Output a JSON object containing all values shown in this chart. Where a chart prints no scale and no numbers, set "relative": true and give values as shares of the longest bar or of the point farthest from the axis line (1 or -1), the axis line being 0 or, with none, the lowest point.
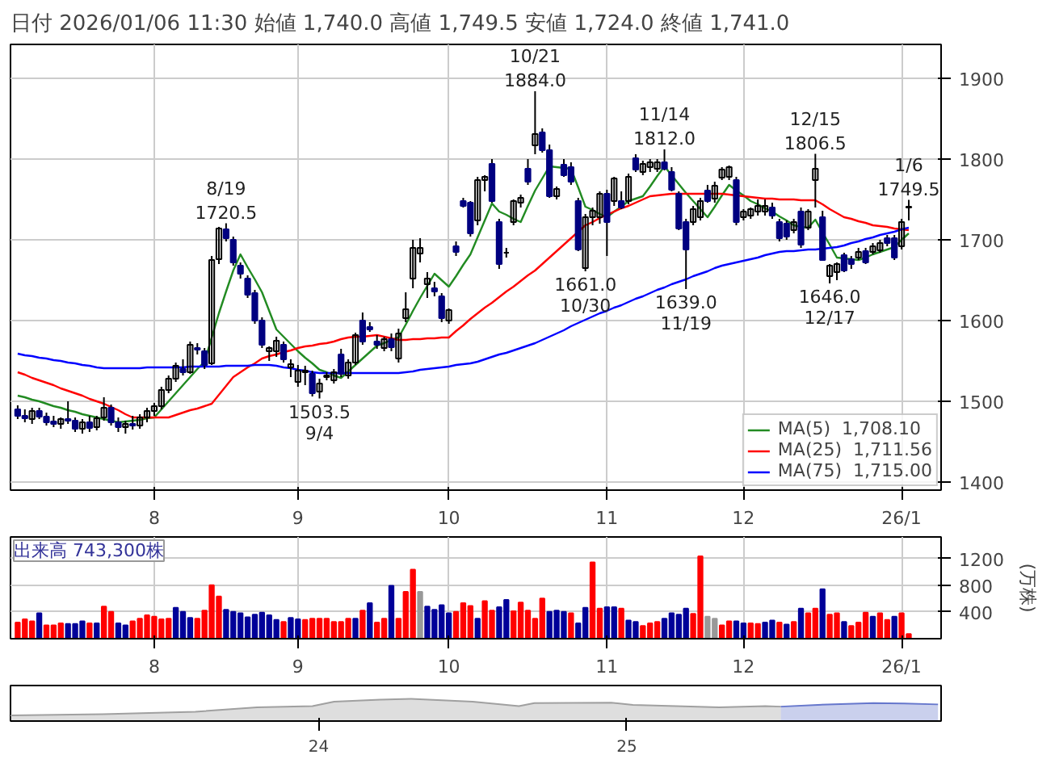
{
  "chart_data": [
    {
      "type": "candlestick",
      "title": "日付 2026/01/06 11:30 始値 1,740.0 高値 1,749.5 安値 1,724.0 終値 1,741.0",
      "categories": [
        null,
        null,
        null,
        null,
        null,
        null,
        null,
        null,
        null,
        null,
        null,
        null,
        null,
        null,
        null,
        null,
        null,
        null,
        null,
        "8",
        null,
        null,
        null,
        null,
        null,
        null,
        null,
        null,
        null,
        null,
        null,
        null,
        null,
        null,
        null,
        null,
        null,
        null,
        null,
        "9",
        null,
        null,
        null,
        null,
        null,
        null,
        null,
        null,
        null,
        null,
        null,
        null,
        null,
        null,
        null,
        null,
        null,
        null,
        null,
        null,
        "10",
        null,
        null,
        null,
        null,
        null,
        null,
        null,
        null,
        null,
        null,
        null,
        null,
        null,
        null,
        null,
        null,
        null,
        null,
        null,
        null,
        null,
        "11",
        null,
        null,
        null,
        null,
        null,
        null,
        null,
        null,
        null,
        null,
        null,
        null,
        null,
        null,
        null,
        null,
        null,
        null,
        "12",
        null,
        null,
        null,
        null,
        null,
        null,
        null,
        null,
        null,
        null,
        null,
        null,
        null,
        null,
        null,
        null,
        null,
        null,
        null,
        null,
        null,
        "26/1",
        null
      ],
      "ohlc": [
        [
          1490,
          1495,
          1478,
          1482
        ],
        [
          1482,
          1490,
          1474,
          1479
        ],
        [
          1478,
          1492,
          1472,
          1488
        ],
        [
          1488,
          1492,
          1478,
          1481
        ],
        [
          1481,
          1486,
          1470,
          1474
        ],
        [
          1475,
          1482,
          1468,
          1472
        ],
        [
          1472,
          1480,
          1466,
          1478
        ],
        [
          1478,
          1500,
          1472,
          1476
        ],
        [
          1476,
          1480,
          1462,
          1466
        ],
        [
          1466,
          1478,
          1460,
          1474
        ],
        [
          1474,
          1482,
          1462,
          1467
        ],
        [
          1468,
          1482,
          1464,
          1479
        ],
        [
          1480,
          1505,
          1476,
          1492
        ],
        [
          1492,
          1496,
          1470,
          1474
        ],
        [
          1474,
          1480,
          1462,
          1468
        ],
        [
          1468,
          1476,
          1460,
          1472
        ],
        [
          1472,
          1482,
          1465,
          1470
        ],
        [
          1470,
          1484,
          1466,
          1480
        ],
        [
          1480,
          1492,
          1474,
          1488
        ],
        [
          1488,
          1498,
          1482,
          1494
        ],
        [
          1494,
          1518,
          1490,
          1514
        ],
        [
          1514,
          1532,
          1510,
          1528
        ],
        [
          1528,
          1548,
          1524,
          1544
        ],
        [
          1540,
          1552,
          1532,
          1536
        ],
        [
          1536,
          1574,
          1534,
          1570
        ],
        [
          1566,
          1572,
          1558,
          1564
        ],
        [
          1562,
          1566,
          1540,
          1545
        ],
        [
          1547,
          1680,
          1545,
          1675
        ],
        [
          1676,
          1716,
          1670,
          1714
        ],
        [
          1713,
          1720.5,
          1698,
          1702
        ],
        [
          1700,
          1704,
          1668,
          1672
        ],
        [
          1668,
          1672,
          1652,
          1658
        ],
        [
          1652,
          1656,
          1628,
          1632
        ],
        [
          1634,
          1638,
          1596,
          1600
        ],
        [
          1600,
          1604,
          1566,
          1570
        ],
        [
          1562,
          1568,
          1550,
          1566
        ],
        [
          1562,
          1580,
          1555,
          1575
        ],
        [
          1570,
          1574,
          1548,
          1552
        ],
        [
          1542,
          1552,
          1530,
          1546
        ],
        [
          1524,
          1545,
          1518,
          1538
        ],
        [
          1536,
          1544,
          1520,
          1538
        ],
        [
          1534,
          1538,
          1506,
          1510
        ],
        [
          1512,
          1528,
          1503.5,
          1522
        ],
        [
          1530,
          1536,
          1526,
          1532
        ],
        [
          1526,
          1540,
          1522,
          1536
        ],
        [
          1558,
          1565,
          1530,
          1534
        ],
        [
          1532,
          1552,
          1528,
          1548
        ],
        [
          1548,
          1585,
          1545,
          1582
        ],
        [
          1600,
          1610,
          1570,
          1574
        ],
        [
          1592,
          1598,
          1586,
          1589
        ],
        [
          1574,
          1582,
          1565,
          1570
        ],
        [
          1566,
          1580,
          1562,
          1577
        ],
        [
          1577,
          1584,
          1562,
          1567
        ],
        [
          1553,
          1590,
          1548,
          1584
        ],
        [
          1603,
          1635,
          1598,
          1614
        ],
        [
          1652,
          1700,
          1640,
          1690
        ],
        [
          1683,
          1702,
          1672,
          1690
        ],
        [
          1645,
          1660,
          1628,
          1652
        ],
        [
          1640,
          1648,
          1630,
          1636
        ],
        [
          1630,
          1634,
          1598,
          1603
        ],
        [
          1600,
          1615,
          1596,
          1613
        ],
        [
          1692,
          1698,
          1680,
          1685
        ],
        [
          1748,
          1752,
          1740,
          1742
        ],
        [
          1746,
          1748,
          1704,
          1708
        ],
        [
          1724,
          1778,
          1718,
          1774
        ],
        [
          1774,
          1780,
          1760,
          1778
        ],
        [
          1794,
          1800,
          1746,
          1748
        ],
        [
          1722,
          1726,
          1664,
          1670
        ],
        [
          1684,
          1690,
          1678,
          1684
        ],
        [
          1722,
          1750,
          1718,
          1748
        ],
        [
          1746,
          1756,
          1740,
          1752
        ],
        [
          1788,
          1800,
          1768,
          1772
        ],
        [
          1817,
          1884.0,
          1806,
          1831
        ],
        [
          1833,
          1838,
          1808,
          1811
        ],
        [
          1811,
          1818,
          1752,
          1754
        ],
        [
          1754,
          1766,
          1750,
          1763
        ],
        [
          1793,
          1800,
          1778,
          1780
        ],
        [
          1790,
          1796,
          1768,
          1772
        ],
        [
          1748,
          1752,
          1686,
          1688
        ],
        [
          1665,
          1732,
          1661.0,
          1728
        ],
        [
          1728,
          1740,
          1718,
          1736
        ],
        [
          1728,
          1760,
          1720,
          1757
        ],
        [
          1757,
          1762,
          1680,
          1722
        ],
        [
          1748,
          1778,
          1742,
          1776
        ],
        [
          1748,
          1760,
          1738,
          1740
        ],
        [
          1748,
          1782,
          1744,
          1778
        ],
        [
          1801,
          1806,
          1784,
          1787
        ],
        [
          1784,
          1798,
          1780,
          1794
        ],
        [
          1790,
          1800,
          1784,
          1796
        ],
        [
          1788,
          1800,
          1784,
          1796
        ],
        [
          1796,
          1812.0,
          1786,
          1788
        ],
        [
          1784,
          1790,
          1760,
          1762
        ],
        [
          1757,
          1760,
          1712,
          1714
        ],
        [
          1722,
          1726,
          1639.0,
          1688
        ],
        [
          1722,
          1742,
          1718,
          1738
        ],
        [
          1728,
          1752,
          1724,
          1748
        ],
        [
          1761,
          1768,
          1746,
          1748
        ],
        [
          1751,
          1772,
          1746,
          1767
        ],
        [
          1777,
          1790,
          1774,
          1787
        ],
        [
          1778,
          1792,
          1774,
          1790
        ],
        [
          1774,
          1778,
          1718,
          1722
        ],
        [
          1728,
          1738,
          1724,
          1735
        ],
        [
          1730,
          1740,
          1726,
          1738
        ],
        [
          1735,
          1750,
          1730,
          1742
        ],
        [
          1735,
          1750,
          1730,
          1742
        ],
        [
          1740,
          1746,
          1726,
          1730
        ],
        [
          1722,
          1726,
          1698,
          1702
        ],
        [
          1720,
          1724,
          1700,
          1704
        ],
        [
          1712,
          1726,
          1708,
          1722
        ],
        [
          1735,
          1740,
          1690,
          1694
        ],
        [
          1715,
          1738,
          1712,
          1735
        ],
        [
          1774,
          1806.5,
          1740,
          1788
        ],
        [
          1728,
          1736,
          1674,
          1675
        ],
        [
          1655,
          1670,
          1646.0,
          1668
        ],
        [
          1660,
          1672,
          1650,
          1670
        ],
        [
          1681,
          1684,
          1660,
          1662
        ],
        [
          1676,
          1680,
          1664,
          1670
        ],
        [
          1678,
          1690,
          1675,
          1685
        ],
        [
          1686,
          1690,
          1670,
          1672
        ],
        [
          1685,
          1696,
          1682,
          1692
        ],
        [
          1687,
          1700,
          1684,
          1696
        ],
        [
          1702,
          1706,
          1692,
          1696
        ],
        [
          1702,
          1706,
          1675,
          1678
        ],
        [
          1692,
          1726,
          1688,
          1722
        ],
        [
          1740,
          1749.5,
          1724,
          1741
        ]
      ],
      "series": [
        {
          "name": "MA(5)  1,708.10",
          "type": "line",
          "color": "#228b22",
          "values": [
            1507,
            1505,
            1502,
            1500,
            1497,
            1494,
            1492,
            1489,
            1487,
            1484,
            1482,
            1480,
            1478,
            1476,
            1474,
            1475,
            1476,
            1477,
            1479,
            1480,
            1490,
            1500,
            1510,
            1520,
            1530,
            1540,
            1549,
            1579,
            1609,
            1636,
            1662,
            1682,
            1666,
            1651,
            1635,
            1612,
            1589,
            1580,
            1571,
            1562,
            1554,
            1547,
            1539,
            1536,
            1532,
            1529,
            1537,
            1545,
            1553,
            1561,
            1569,
            1572,
            1576,
            1579,
            1595,
            1612,
            1628,
            1643,
            1658,
            1650,
            1642,
            1655,
            1669,
            1682,
            1703,
            1724,
            1745,
            1735,
            1731,
            1726,
            1722,
            1742,
            1761,
            1776,
            1791,
            1790,
            1789,
            1788,
            1765,
            1741,
            1737,
            1732,
            1728,
            1735,
            1741,
            1748,
            1751,
            1754,
            1766,
            1779,
            1791,
            1780,
            1769,
            1758,
            1748,
            1738,
            1728,
            1741,
            1755,
            1768,
            1761,
            1755,
            1748,
            1744,
            1739,
            1735,
            1729,
            1724,
            1718,
            1716,
            1715,
            1725,
            1709,
            1694,
            1678,
            1677,
            1676,
            1675,
            1678,
            1682,
            1685,
            1688,
            1691,
            1700,
            1708
          ]
        },
        {
          "name": "MA(25)  1,711.56",
          "type": "line",
          "color": "#ff0000",
          "values": [
            1536,
            1533,
            1529,
            1526,
            1523,
            1520,
            1516,
            1513,
            1510,
            1507,
            1503,
            1500,
            1497,
            1493,
            1489,
            1484,
            1480,
            1480,
            1480,
            1480,
            1480,
            1480,
            1483,
            1486,
            1489,
            1491,
            1494,
            1497,
            1508,
            1519,
            1530,
            1536,
            1542,
            1547,
            1553,
            1556,
            1558,
            1561,
            1563,
            1566,
            1568,
            1569,
            1571,
            1572,
            1574,
            1577,
            1579,
            1580,
            1580,
            1581,
            1582,
            1580,
            1578,
            1576,
            1576,
            1577,
            1577,
            1578,
            1578,
            1579,
            1579,
            1587,
            1594,
            1602,
            1609,
            1616,
            1622,
            1629,
            1636,
            1642,
            1649,
            1656,
            1662,
            1670,
            1678,
            1686,
            1694,
            1702,
            1710,
            1718,
            1722,
            1727,
            1731,
            1735,
            1739,
            1742,
            1746,
            1750,
            1754,
            1755,
            1756,
            1757,
            1757,
            1757,
            1757,
            1757,
            1757,
            1757,
            1757,
            1756,
            1755,
            1754,
            1753,
            1752,
            1751,
            1751,
            1750,
            1750,
            1750,
            1749,
            1749,
            1749,
            1744,
            1738,
            1733,
            1728,
            1726,
            1723,
            1721,
            1718,
            1717,
            1716,
            1714,
            1713,
            1712
          ]
        },
        {
          "name": "MA(75)  1,715.00",
          "type": "line",
          "color": "#0000ff",
          "values": [
            1559,
            1557,
            1556,
            1554,
            1553,
            1551,
            1550,
            1548,
            1547,
            1545,
            1544,
            1542,
            1541,
            1541,
            1541,
            1541,
            1541,
            1541,
            1542,
            1542,
            1542,
            1542,
            1542,
            1542,
            1543,
            1543,
            1543,
            1543,
            1543,
            1544,
            1544,
            1544,
            1544,
            1545,
            1545,
            1545,
            1544,
            1542,
            1541,
            1539,
            1538,
            1536,
            1535,
            1535,
            1535,
            1535,
            1535,
            1535,
            1535,
            1535,
            1535,
            1535,
            1535,
            1535,
            1536,
            1537,
            1539,
            1540,
            1541,
            1542,
            1543,
            1545,
            1546,
            1547,
            1549,
            1552,
            1555,
            1558,
            1560,
            1563,
            1566,
            1569,
            1572,
            1576,
            1580,
            1584,
            1588,
            1593,
            1597,
            1601,
            1605,
            1609,
            1612,
            1616,
            1619,
            1623,
            1627,
            1630,
            1634,
            1638,
            1641,
            1645,
            1648,
            1651,
            1655,
            1658,
            1661,
            1665,
            1668,
            1670,
            1672,
            1674,
            1676,
            1678,
            1681,
            1683,
            1685,
            1686,
            1686,
            1687,
            1688,
            1688,
            1689,
            1690,
            1691,
            1693,
            1696,
            1698,
            1701,
            1703,
            1706,
            1708,
            1710,
            1713,
            1715
          ]
        }
      ],
      "annotations": [
        {
          "text": "8/19\n1720.5",
          "y": 1720.5
        },
        {
          "text": "1503.5\n9/4",
          "y": 1503.5
        },
        {
          "text": "10/21\n1884.0",
          "y": 1884.0
        },
        {
          "text": "1661.0\n10/30",
          "y": 1661.0
        },
        {
          "text": "11/14\n1812.0",
          "y": 1812.0
        },
        {
          "text": "1639.0\n11/19",
          "y": 1639.0
        },
        {
          "text": "12/15\n1806.5",
          "y": 1806.5
        },
        {
          "text": "1646.0\n12/17",
          "y": 1646.0
        },
        {
          "text": "1/6\n1749.5",
          "y": 1749.5
        }
      ],
      "ylim": [
        1390,
        1942
      ],
      "yticks": [
        1400,
        1500,
        1600,
        1700,
        1800,
        1900
      ],
      "grid": true,
      "legend": "bottom right"
    },
    {
      "type": "bar",
      "title": "出来高 743,300株",
      "ylabel": "(万株)",
      "categories": [
        null,
        null,
        null,
        null,
        null,
        null,
        null,
        null,
        null,
        null,
        null,
        null,
        null,
        null,
        null,
        null,
        null,
        null,
        null,
        "8",
        null,
        null,
        null,
        null,
        null,
        null,
        null,
        null,
        null,
        null,
        null,
        null,
        null,
        null,
        null,
        null,
        null,
        null,
        null,
        "9",
        null,
        null,
        null,
        null,
        null,
        null,
        null,
        null,
        null,
        null,
        null,
        null,
        null,
        null,
        null,
        null,
        null,
        null,
        null,
        null,
        "10",
        null,
        null,
        null,
        null,
        null,
        null,
        null,
        null,
        null,
        null,
        null,
        null,
        null,
        null,
        null,
        null,
        null,
        null,
        null,
        null,
        null,
        "11",
        null,
        null,
        null,
        null,
        null,
        null,
        null,
        null,
        null,
        null,
        null,
        null,
        null,
        null,
        null,
        null,
        null,
        null,
        "12",
        null,
        null,
        null,
        null,
        null,
        null,
        null,
        null,
        null,
        null,
        null,
        null,
        null,
        null,
        null,
        null,
        null,
        null,
        null,
        null,
        null,
        "26/1",
        null
      ],
      "values": [
        240,
        290,
        260,
        380,
        200,
        200,
        230,
        220,
        220,
        260,
        230,
        230,
        480,
        400,
        230,
        200,
        260,
        300,
        350,
        330,
        290,
        300,
        460,
        400,
        310,
        300,
        420,
        800,
        630,
        430,
        400,
        380,
        320,
        360,
        390,
        350,
        280,
        250,
        310,
        290,
        280,
        300,
        300,
        300,
        250,
        250,
        300,
        300,
        420,
        530,
        240,
        300,
        790,
        300,
        700,
        1030,
        700,
        480,
        430,
        500,
        380,
        400,
        530,
        490,
        300,
        560,
        420,
        470,
        580,
        410,
        540,
        420,
        300,
        600,
        400,
        420,
        400,
        380,
        230,
        460,
        1140,
        450,
        470,
        470,
        450,
        270,
        250,
        190,
        230,
        250,
        300,
        380,
        360,
        450,
        370,
        1230,
        330,
        300,
        200,
        260,
        260,
        230,
        230,
        220,
        240,
        270,
        240,
        210,
        250,
        450,
        380,
        450,
        740,
        360,
        380,
        250,
        190,
        240,
        390,
        330,
        380,
        280,
        330,
        380,
        70
      ],
      "colors": [
        "#ff0000",
        "#ff0000",
        "#ff0000",
        "#000099",
        "#ff0000",
        "#ff0000",
        "#ff0000",
        "#000099",
        "#000099",
        "#000099",
        "#ff0000",
        "#000099",
        "#ff0000",
        "#ff0000",
        "#000099",
        "#000099",
        "#ff0000",
        "#ff0000",
        "#ff0000",
        "#ff0000",
        "#ff0000",
        "#ff0000",
        "#000099",
        "#000099",
        "#000099",
        "#ff0000",
        "#ff0000",
        "#ff0000",
        "#ff0000",
        "#000099",
        "#000099",
        "#000099",
        "#000099",
        "#000099",
        "#000099",
        "#000099",
        "#000099",
        "#ff0000",
        "#000099",
        "#000099",
        "#ff0000",
        "#ff0000",
        "#ff0000",
        "#ff0000",
        "#ff0000",
        "#ff0000",
        "#ff0000",
        "#000099",
        "#ff0000",
        "#000099",
        "#ff0000",
        "#ff0000",
        "#000099",
        "#ff0000",
        "#ff0000",
        "#ff0000",
        "#999999",
        "#000099",
        "#000099",
        "#000099",
        "#000099",
        "#ff0000",
        "#ff0000",
        "#ff0000",
        "#000099",
        "#ff0000",
        "#ff0000",
        "#000099",
        "#000099",
        "#ff0000",
        "#ff0000",
        "#ff0000",
        "#ff0000",
        "#ff0000",
        "#000099",
        "#000099",
        "#000099",
        "#ff0000",
        "#000099",
        "#000099",
        "#ff0000",
        "#ff0000",
        "#000099",
        "#000099",
        "#ff0000",
        "#000099",
        "#000099",
        "#ff0000",
        "#ff0000",
        "#ff0000",
        "#000099",
        "#000099",
        "#000099",
        "#000099",
        "#ff0000",
        "#ff0000",
        "#999999",
        "#999999",
        "#ff0000",
        "#ff0000",
        "#000099",
        "#000099",
        "#ff0000",
        "#ff0000",
        "#000099",
        "#000099",
        "#ff0000",
        "#000099",
        "#ff0000",
        "#000099",
        "#ff0000",
        "#ff0000",
        "#000099",
        "#ff0000",
        "#ff0000",
        "#000099",
        "#ff0000",
        "#ff0000",
        "#ff0000",
        "#000099",
        "#ff0000",
        "#ff0000",
        "#000099",
        "#ff0000",
        "#ff0000"
      ],
      "ylim": [
        0,
        1520
      ],
      "yticks": [
        400,
        800,
        1200
      ],
      "grid": true
    },
    {
      "type": "area",
      "relative": true,
      "series": [
        {
          "color": "#a0a0a0",
          "x": [
            2023.0,
            2023.3,
            2023.6,
            2023.8,
            2023.98,
            2024.05,
            2024.2,
            2024.3,
            2024.5,
            2024.65,
            2024.7,
            2024.95,
            2025.02,
            2025.3,
            2025.45,
            2025.5
          ],
          "values": [
            0.25,
            0.31,
            0.42,
            0.62,
            0.67,
            0.87,
            0.96,
            1.0,
            0.87,
            0.67,
            0.81,
            0.83,
            0.73,
            0.62,
            0.67,
            0.65
          ]
        },
        {
          "color": "#6677cc",
          "x": [
            2025.5,
            2025.62,
            2025.8,
            2025.9,
            2026.01
          ],
          "values": [
            0.65,
            0.73,
            0.81,
            0.79,
            0.75
          ]
        }
      ],
      "xlim": [
        2023.0,
        2026.02
      ],
      "xticks": [
        {
          "value": 2024,
          "label": "24"
        },
        {
          "value": 2025,
          "label": "25"
        }
      ]
    }
  ]
}
